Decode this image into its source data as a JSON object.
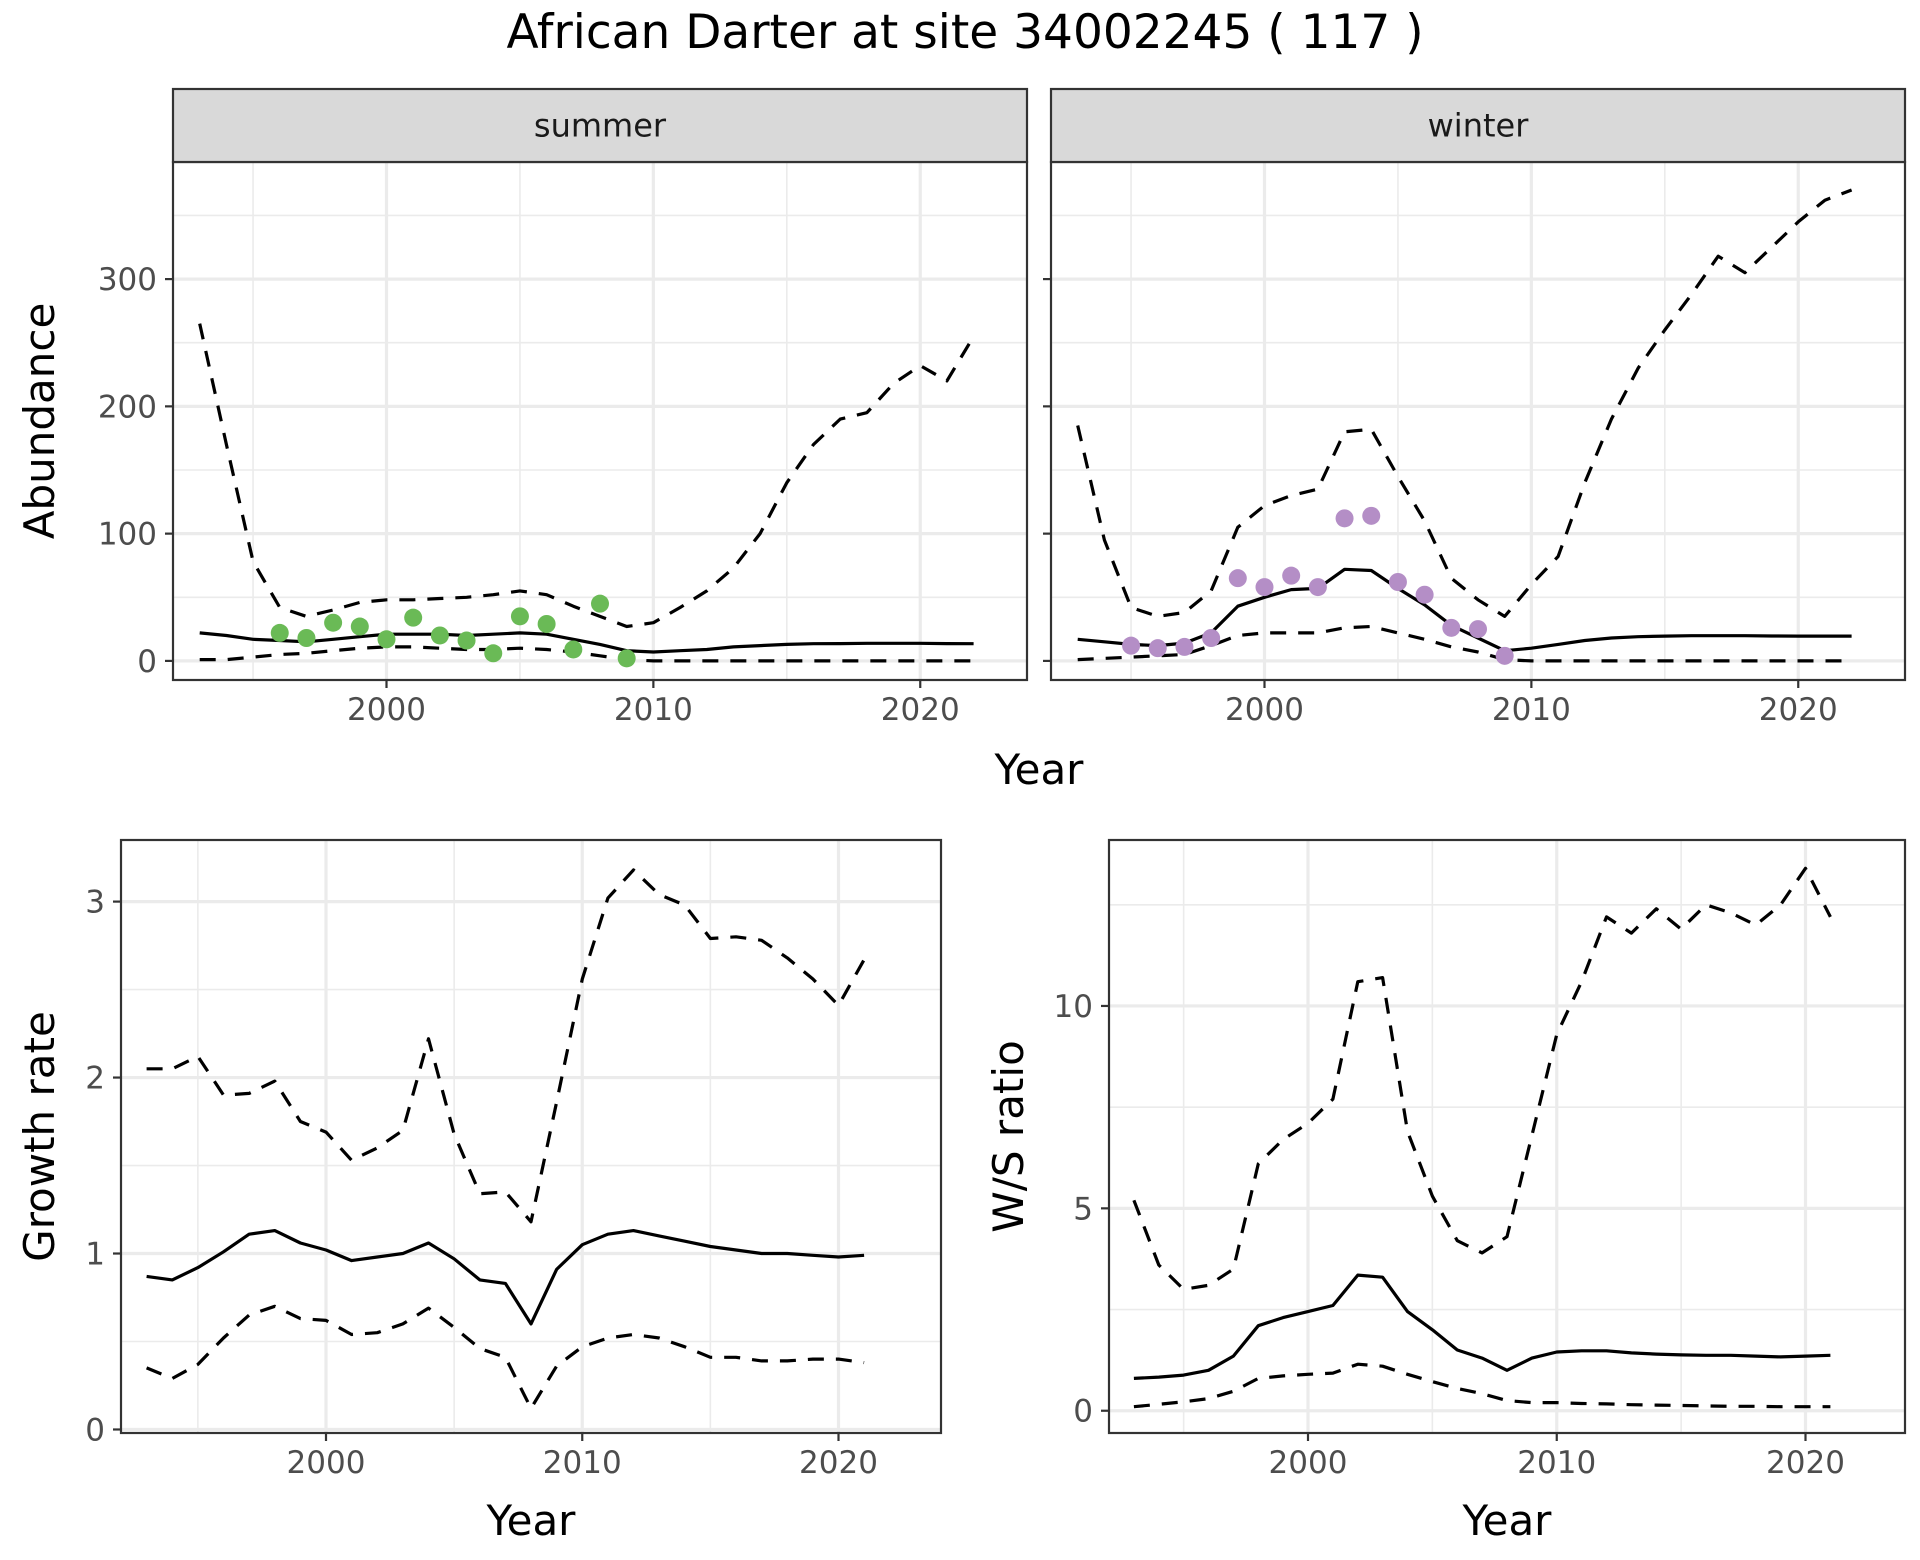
{
  "title": "African Darter at site 34002245 ( 117 )",
  "colors": {
    "summer_points": "#6aba56",
    "winter_points": "#b48ec6",
    "lines": "#000000",
    "strip": "#d9d9d9"
  },
  "chart_data": [
    {
      "type": "line",
      "panel": "summer",
      "facet_label": "summer",
      "ylabel": "Abundance",
      "xlabel": "Year",
      "xlim": [
        1992,
        2024
      ],
      "ylim": [
        -15,
        392
      ],
      "x_ticks": [
        2000,
        2010,
        2020
      ],
      "y_ticks": [
        0,
        100,
        200,
        300
      ],
      "grid": true,
      "series": [
        {
          "style": "solid",
          "x": [
            1993,
            1994,
            1995,
            1996,
            1997,
            1998,
            1999,
            2000,
            2001,
            2002,
            2003,
            2004,
            2005,
            2006,
            2007,
            2008,
            2009,
            2010,
            2011,
            2012,
            2013,
            2014,
            2015,
            2016,
            2017,
            2018,
            2019,
            2020,
            2021,
            2022
          ],
          "y": [
            22,
            20,
            17,
            16,
            15,
            17,
            19,
            21,
            21,
            21,
            20,
            21,
            22,
            21,
            17,
            13,
            8,
            7,
            8,
            9,
            11,
            12,
            13,
            13.5,
            13.6,
            13.8,
            13.8,
            13.8,
            13.6,
            13.5
          ]
        },
        {
          "style": "dashed",
          "x": [
            1993,
            1994,
            1995,
            1996,
            1997,
            1998,
            1999,
            2000,
            2001,
            2002,
            2003,
            2004,
            2005,
            2006,
            2007,
            2008,
            2009,
            2010,
            2011,
            2012,
            2013,
            2014,
            2015,
            2016,
            2017,
            2018,
            2019,
            2020,
            2021,
            2022
          ],
          "y": [
            265,
            170,
            78,
            42,
            35,
            40,
            46,
            48,
            48,
            49,
            50,
            52,
            55,
            52,
            43,
            35,
            27,
            30,
            42,
            55,
            73,
            100,
            140,
            170,
            190,
            195,
            218,
            232,
            220,
            255
          ]
        },
        {
          "style": "dashed",
          "x": [
            1993,
            1994,
            1995,
            1996,
            1997,
            1998,
            1999,
            2000,
            2001,
            2002,
            2003,
            2004,
            2005,
            2006,
            2007,
            2008,
            2009,
            2010,
            2011,
            2012,
            2013,
            2014,
            2015,
            2016,
            2017,
            2018,
            2019,
            2020,
            2021,
            2022
          ],
          "y": [
            1,
            1,
            3,
            5,
            6,
            8,
            10,
            11,
            11,
            10,
            9,
            9,
            10,
            9,
            7,
            4,
            1,
            0,
            0,
            0,
            0,
            0,
            0,
            0,
            0,
            0,
            0,
            0,
            0,
            0
          ]
        }
      ],
      "points": {
        "x": [
          1996,
          1997,
          1998,
          1999,
          2000,
          2001,
          2002,
          2003,
          2004,
          2005,
          2006,
          2007,
          2008,
          2009
        ],
        "y": [
          22,
          18,
          30,
          27,
          17,
          34,
          20,
          16,
          6,
          35,
          29,
          9,
          45,
          2
        ]
      }
    },
    {
      "type": "line",
      "panel": "winter",
      "facet_label": "winter",
      "xlabel": "Year",
      "xlim": [
        1992,
        2024
      ],
      "ylim": [
        -15,
        392
      ],
      "x_ticks": [
        2000,
        2010,
        2020
      ],
      "grid": true,
      "series": [
        {
          "style": "solid",
          "x": [
            1993,
            1994,
            1995,
            1996,
            1997,
            1998,
            1999,
            2000,
            2001,
            2002,
            2003,
            2004,
            2005,
            2006,
            2007,
            2008,
            2009,
            2010,
            2011,
            2012,
            2013,
            2014,
            2015,
            2016,
            2017,
            2018,
            2019,
            2020,
            2021,
            2022
          ],
          "y": [
            17,
            15,
            13,
            12,
            14,
            22,
            43,
            50,
            56,
            57,
            72,
            71,
            57,
            44,
            28,
            18,
            8,
            10,
            13,
            16,
            18,
            19,
            19.5,
            19.8,
            19.8,
            19.8,
            19.6,
            19.5,
            19.5,
            19.5
          ]
        },
        {
          "style": "dashed",
          "x": [
            1993,
            1994,
            1995,
            1996,
            1997,
            1998,
            1999,
            2000,
            2001,
            2002,
            2003,
            2004,
            2005,
            2006,
            2007,
            2008,
            2009,
            2010,
            2011,
            2012,
            2013,
            2014,
            2015,
            2016,
            2017,
            2018,
            2019,
            2020,
            2021,
            2022
          ],
          "y": [
            185,
            95,
            42,
            35,
            38,
            55,
            105,
            122,
            130,
            135,
            180,
            182,
            145,
            110,
            65,
            48,
            35,
            60,
            82,
            140,
            190,
            230,
            260,
            288,
            318,
            305,
            325,
            345,
            362,
            370
          ]
        },
        {
          "style": "dashed",
          "x": [
            1993,
            1994,
            1995,
            1996,
            1997,
            1998,
            1999,
            2000,
            2001,
            2002,
            2003,
            2004,
            2005,
            2006,
            2007,
            2008,
            2009,
            2010,
            2011,
            2012,
            2013,
            2014,
            2015,
            2016,
            2017,
            2018,
            2019,
            2020,
            2021,
            2022
          ],
          "y": [
            1,
            2,
            3,
            4,
            5,
            12,
            20,
            22,
            22,
            22,
            26,
            27,
            22,
            17,
            11,
            7,
            1,
            0,
            0,
            0,
            0,
            0,
            0,
            0,
            0,
            0,
            0,
            0,
            0,
            0
          ]
        }
      ],
      "points": {
        "x": [
          1995,
          1996,
          1997,
          1998,
          1999,
          2000,
          2001,
          2002,
          2003,
          2004,
          2005,
          2006,
          2007,
          2008,
          2009
        ],
        "y": [
          12,
          10,
          11,
          18,
          65,
          58,
          67,
          58,
          112,
          114,
          62,
          52,
          26,
          25,
          4
        ]
      }
    },
    {
      "type": "line",
      "panel": "growth",
      "ylabel": "Growth rate",
      "xlabel": "Year",
      "xlim": [
        1992,
        2024
      ],
      "ylim": [
        -0.02,
        3.35
      ],
      "x_ticks": [
        2000,
        2010,
        2020
      ],
      "y_ticks": [
        0,
        1,
        2,
        3
      ],
      "grid": true,
      "series": [
        {
          "style": "solid",
          "x": [
            1993,
            1994,
            1995,
            1996,
            1997,
            1998,
            1999,
            2000,
            2001,
            2002,
            2003,
            2004,
            2005,
            2006,
            2007,
            2008,
            2009,
            2010,
            2011,
            2012,
            2013,
            2014,
            2015,
            2016,
            2017,
            2018,
            2019,
            2020,
            2021
          ],
          "y": [
            0.87,
            0.85,
            0.92,
            1.01,
            1.11,
            1.13,
            1.06,
            1.02,
            0.96,
            0.98,
            1.0,
            1.06,
            0.97,
            0.85,
            0.83,
            0.6,
            0.91,
            1.05,
            1.11,
            1.13,
            1.1,
            1.07,
            1.04,
            1.02,
            1.0,
            1.0,
            0.99,
            0.98,
            0.99
          ]
        },
        {
          "style": "dashed",
          "x": [
            1993,
            1994,
            1995,
            1996,
            1997,
            1998,
            1999,
            2000,
            2001,
            2002,
            2003,
            2004,
            2005,
            2006,
            2007,
            2008,
            2009,
            2010,
            2011,
            2012,
            2013,
            2014,
            2015,
            2016,
            2017,
            2018,
            2019,
            2020,
            2021
          ],
          "y": [
            2.05,
            2.05,
            2.12,
            1.9,
            1.91,
            1.98,
            1.75,
            1.69,
            1.53,
            1.6,
            1.7,
            2.22,
            1.68,
            1.34,
            1.35,
            1.18,
            1.86,
            2.56,
            3.02,
            3.18,
            3.04,
            2.98,
            2.79,
            2.8,
            2.78,
            2.68,
            2.56,
            2.41,
            2.67
          ]
        },
        {
          "style": "dashed",
          "x": [
            1993,
            1994,
            1995,
            1996,
            1997,
            1998,
            1999,
            2000,
            2001,
            2002,
            2003,
            2004,
            2005,
            2006,
            2007,
            2008,
            2009,
            2010,
            2011,
            2012,
            2013,
            2014,
            2015,
            2016,
            2017,
            2018,
            2019,
            2020,
            2021
          ],
          "y": [
            0.35,
            0.29,
            0.37,
            0.52,
            0.65,
            0.7,
            0.63,
            0.62,
            0.54,
            0.55,
            0.6,
            0.69,
            0.58,
            0.46,
            0.41,
            0.12,
            0.36,
            0.47,
            0.52,
            0.54,
            0.52,
            0.47,
            0.41,
            0.41,
            0.39,
            0.39,
            0.4,
            0.4,
            0.38
          ]
        }
      ]
    },
    {
      "type": "line",
      "panel": "ratio",
      "ylabel": "W/S ratio",
      "xlabel": "Year",
      "xlim": [
        1992,
        2024
      ],
      "ylim": [
        -0.55,
        14.1
      ],
      "x_ticks": [
        2000,
        2010,
        2020
      ],
      "y_ticks": [
        0,
        5,
        10
      ],
      "grid": true,
      "series": [
        {
          "style": "solid",
          "x": [
            1993,
            1994,
            1995,
            1996,
            1997,
            1998,
            1999,
            2000,
            2001,
            2002,
            2003,
            2004,
            2005,
            2006,
            2007,
            2008,
            2009,
            2010,
            2011,
            2012,
            2013,
            2014,
            2015,
            2016,
            2017,
            2018,
            2019,
            2020,
            2021
          ],
          "y": [
            0.8,
            0.83,
            0.88,
            1.0,
            1.35,
            2.1,
            2.3,
            2.45,
            2.6,
            3.35,
            3.3,
            2.45,
            2.0,
            1.5,
            1.3,
            1.0,
            1.3,
            1.45,
            1.48,
            1.48,
            1.43,
            1.4,
            1.38,
            1.37,
            1.37,
            1.35,
            1.33,
            1.35,
            1.37
          ]
        },
        {
          "style": "dashed",
          "x": [
            1993,
            1994,
            1995,
            1996,
            1997,
            1998,
            1999,
            2000,
            2001,
            2002,
            2003,
            2004,
            2005,
            2006,
            2007,
            2008,
            2009,
            2010,
            2011,
            2012,
            2013,
            2014,
            2015,
            2016,
            2017,
            2018,
            2019,
            2020,
            2021
          ],
          "y": [
            5.2,
            3.6,
            3.0,
            3.1,
            3.5,
            6.1,
            6.7,
            7.1,
            7.7,
            10.6,
            10.7,
            6.9,
            5.3,
            4.2,
            3.9,
            4.3,
            6.8,
            9.3,
            10.6,
            12.2,
            11.8,
            12.4,
            11.9,
            12.5,
            12.3,
            12.0,
            12.5,
            13.4,
            12.2
          ]
        },
        {
          "style": "dashed",
          "x": [
            1993,
            1994,
            1995,
            1996,
            1997,
            1998,
            1999,
            2000,
            2001,
            2002,
            2003,
            2004,
            2005,
            2006,
            2007,
            2008,
            2009,
            2010,
            2011,
            2012,
            2013,
            2014,
            2015,
            2016,
            2017,
            2018,
            2019,
            2020,
            2021
          ],
          "y": [
            0.1,
            0.16,
            0.22,
            0.3,
            0.48,
            0.8,
            0.86,
            0.9,
            0.93,
            1.15,
            1.1,
            0.9,
            0.72,
            0.55,
            0.42,
            0.25,
            0.2,
            0.2,
            0.18,
            0.17,
            0.15,
            0.14,
            0.13,
            0.12,
            0.11,
            0.11,
            0.1,
            0.1,
            0.1
          ]
        }
      ]
    }
  ]
}
